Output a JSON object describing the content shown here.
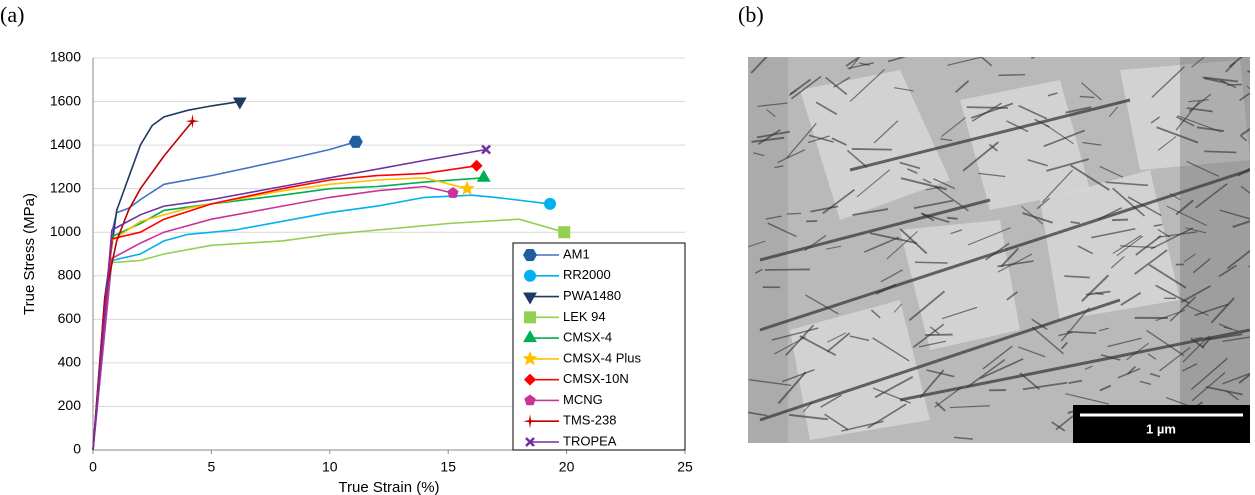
{
  "chart_data": {
    "type": "line",
    "panel_label": "(a)",
    "x_label": "True Strain (%)",
    "y_label": "True Stress (MPa)",
    "xlim": [
      0,
      25
    ],
    "xticks": [
      0,
      5,
      10,
      15,
      20,
      25
    ],
    "ylim": [
      0,
      1800
    ],
    "yticks": [
      0,
      200,
      400,
      600,
      800,
      1000,
      1200,
      1400,
      1600,
      1800
    ],
    "grid": true,
    "legend": "lower right",
    "series": [
      {
        "name": "AM1",
        "color": "#4472c4",
        "marker_color": "#1f5fa0",
        "marker": "hexagon",
        "x": [
          0,
          0.8,
          1,
          1.5,
          2,
          3,
          5,
          8,
          10,
          11.1
        ],
        "values": [
          0,
          1000,
          1090,
          1110,
          1150,
          1220,
          1260,
          1330,
          1380,
          1415
        ]
      },
      {
        "name": "RR2000",
        "color": "#00b0f0",
        "marker_color": "#00b0f0",
        "marker": "circle",
        "x": [
          0,
          0.8,
          2,
          3,
          4,
          6,
          8,
          10,
          12,
          14,
          16,
          17,
          19.3
        ],
        "values": [
          0,
          870,
          900,
          960,
          990,
          1010,
          1050,
          1090,
          1120,
          1160,
          1170,
          1160,
          1130
        ]
      },
      {
        "name": "PWA1480",
        "color": "#1f3864",
        "marker_color": "#1f3864",
        "marker": "triangle-down",
        "x": [
          0,
          0.5,
          1,
          1.5,
          2,
          2.5,
          3,
          4,
          5,
          6.2
        ],
        "values": [
          0,
          700,
          1100,
          1250,
          1400,
          1490,
          1530,
          1560,
          1580,
          1600
        ]
      },
      {
        "name": "LEK 94",
        "color": "#92d050",
        "marker_color": "#92d050",
        "marker": "square",
        "x": [
          0,
          0.7,
          2,
          3,
          5,
          8,
          10,
          12,
          15,
          18,
          19.9
        ],
        "values": [
          0,
          860,
          870,
          900,
          940,
          960,
          990,
          1010,
          1040,
          1060,
          1000
        ]
      },
      {
        "name": "CMSX-4",
        "color": "#00b050",
        "marker_color": "#00b050",
        "marker": "triangle-up",
        "x": [
          0,
          0.8,
          2,
          3,
          5,
          8,
          10,
          12,
          14,
          16.5
        ],
        "values": [
          0,
          980,
          1040,
          1100,
          1130,
          1170,
          1200,
          1210,
          1230,
          1250
        ]
      },
      {
        "name": "CMSX-4 Plus",
        "color": "#ffc000",
        "marker_color": "#ffc000",
        "marker": "star",
        "x": [
          0,
          0.8,
          2,
          4,
          6,
          8,
          10,
          12,
          14,
          15.8
        ],
        "values": [
          0,
          960,
          1050,
          1110,
          1150,
          1190,
          1220,
          1240,
          1250,
          1200
        ]
      },
      {
        "name": "CMSX-10N",
        "color": "#ff0000",
        "marker_color": "#ff0000",
        "marker": "diamond",
        "x": [
          0,
          0.8,
          2,
          3,
          5,
          8,
          10,
          12,
          14,
          16.2
        ],
        "values": [
          0,
          970,
          1000,
          1060,
          1130,
          1200,
          1240,
          1260,
          1270,
          1305
        ]
      },
      {
        "name": "MCNG",
        "color": "#cc3399",
        "marker_color": "#cc3399",
        "marker": "pentagon",
        "x": [
          0,
          0.8,
          2,
          3,
          5,
          8,
          10,
          12,
          14,
          15.2
        ],
        "values": [
          0,
          880,
          950,
          1000,
          1060,
          1120,
          1160,
          1190,
          1210,
          1180
        ]
      },
      {
        "name": "TMS-238",
        "color": "#c00000",
        "marker_color": "#c00000",
        "marker": "cross-star",
        "x": [
          0,
          0.5,
          1,
          1.5,
          2,
          3,
          4.2
        ],
        "values": [
          0,
          700,
          960,
          1100,
          1200,
          1350,
          1510
        ]
      },
      {
        "name": "TROPEA",
        "color": "#7030a0",
        "marker_color": "#7030a0",
        "marker": "x",
        "x": [
          0,
          0.8,
          2,
          3,
          5,
          8,
          10,
          12,
          14,
          16.6
        ],
        "values": [
          0,
          1010,
          1080,
          1120,
          1150,
          1210,
          1250,
          1290,
          1330,
          1380
        ]
      }
    ]
  },
  "micrograph": {
    "panel_label": "(b)",
    "scale_bar": "1 µm"
  }
}
